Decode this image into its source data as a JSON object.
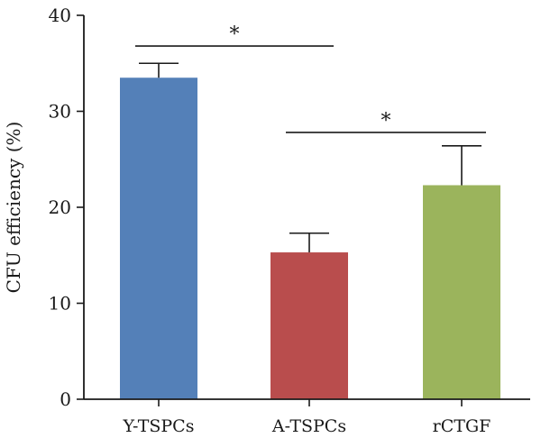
{
  "chart_data": {
    "type": "bar",
    "ylabel": "CFU efficiency (%)",
    "ylim": [
      0,
      40
    ],
    "yticks": [
      0,
      10,
      20,
      30,
      40
    ],
    "categories": [
      "Y-TSPCs",
      "A-TSPCs",
      "rCTGF"
    ],
    "values": [
      33.5,
      15.3,
      22.3
    ],
    "errors": [
      1.5,
      2.0,
      4.1
    ],
    "colors": [
      "#5480b8",
      "#b94d4d",
      "#9bb45c"
    ],
    "significance": [
      {
        "from": 0,
        "to": 1,
        "label": "*",
        "y": 36.8
      },
      {
        "from": 1,
        "to": 2,
        "label": "*",
        "y": 27.8
      }
    ]
  }
}
